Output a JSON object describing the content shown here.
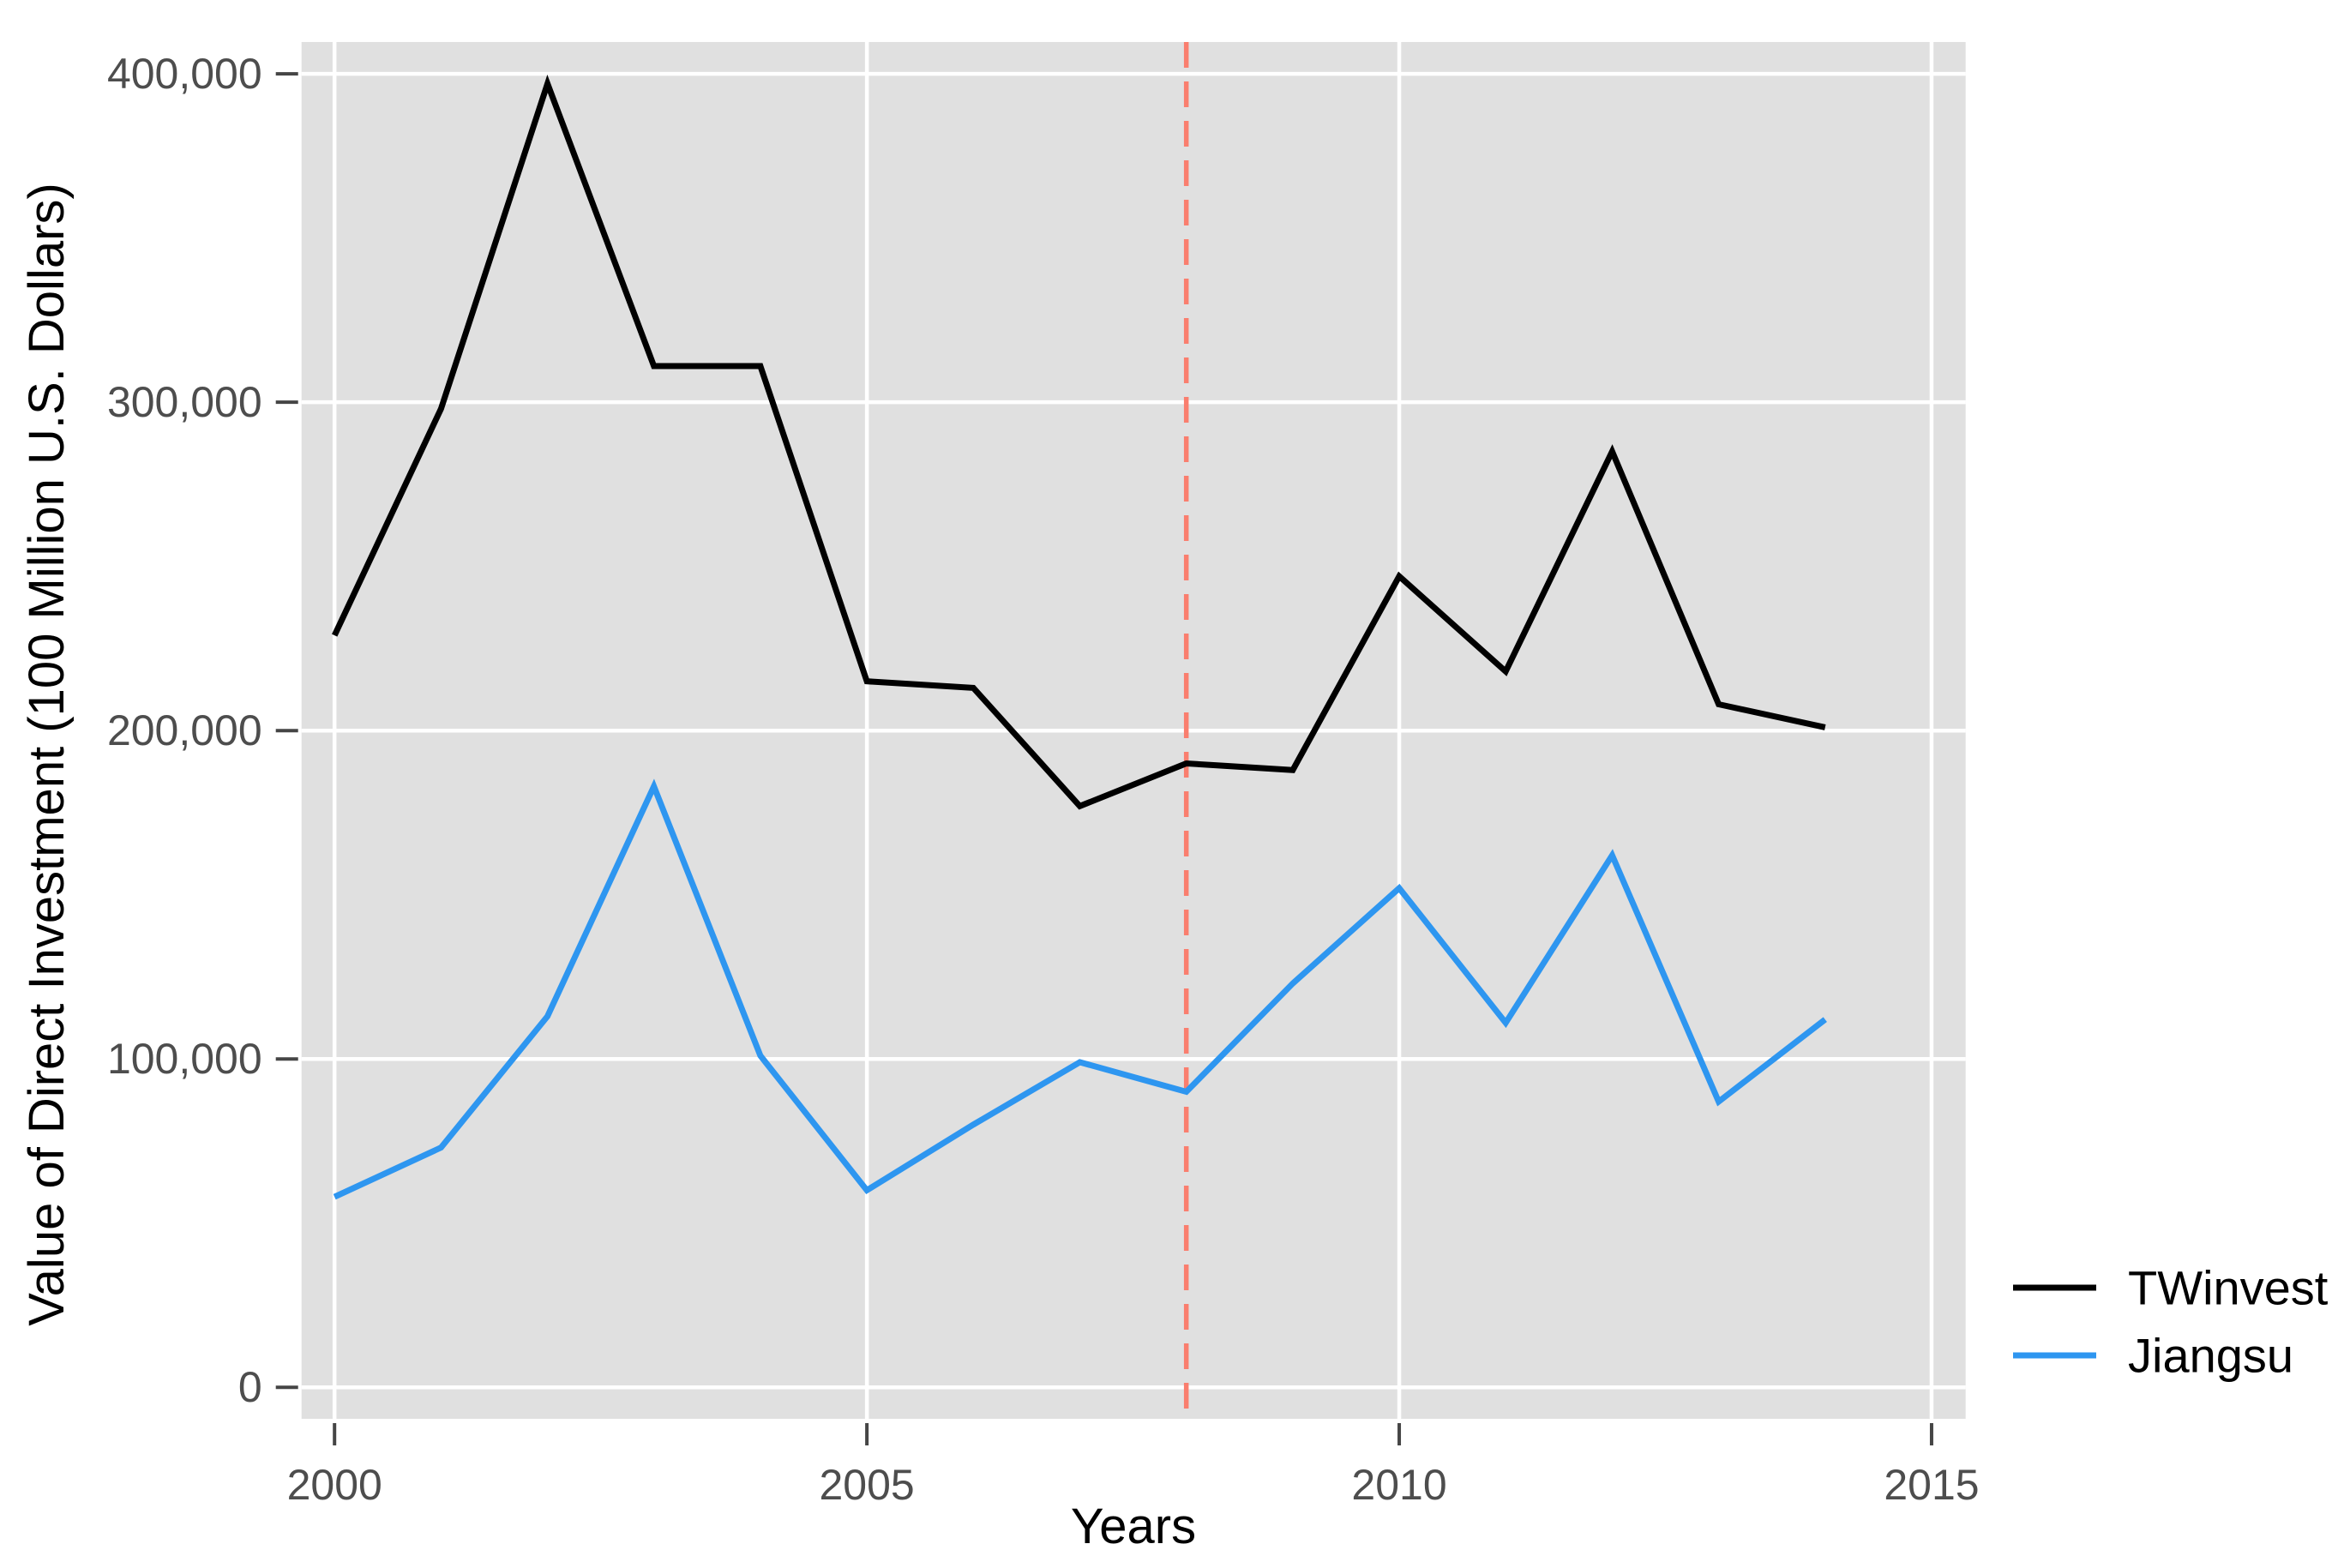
{
  "figure": {
    "background": "#FFFFFF",
    "panel_background": "#E0E0E0",
    "grid_color": "#FFFFFF",
    "tick_color": "#454545",
    "tick_label_color": "#4D4D4D",
    "text_color": "#000000"
  },
  "chart_data": {
    "type": "line",
    "title": "",
    "xlabel": "Years",
    "ylabel": "Value of Direct Investment (100 Million U.S. Dollars)",
    "x": [
      2000,
      2001,
      2002,
      2003,
      2004,
      2005,
      2006,
      2007,
      2008,
      2009,
      2010,
      2011,
      2012,
      2013,
      2014
    ],
    "series": [
      {
        "name": "TWinvest",
        "color": "#000000",
        "values": [
          229000,
          298000,
          397000,
          311000,
          311000,
          215000,
          213000,
          177000,
          190000,
          188000,
          247000,
          218000,
          285000,
          208000,
          201000
        ]
      },
      {
        "name": "Jiangsu",
        "color": "#2E96F0",
        "values": [
          58000,
          73000,
          113000,
          183000,
          101000,
          60000,
          80000,
          99000,
          90000,
          123000,
          152000,
          111000,
          162000,
          87000,
          112000
        ]
      }
    ],
    "reference_line": {
      "orientation": "vertical",
      "x": 2008,
      "color": "#FA7E6E",
      "style": "dashed"
    },
    "x_ticks": [
      {
        "value": 2000,
        "label": "2000"
      },
      {
        "value": 2005,
        "label": "2005"
      },
      {
        "value": 2010,
        "label": "2010"
      },
      {
        "value": 2015,
        "label": "2015"
      }
    ],
    "y_ticks": [
      {
        "value": 0,
        "label": "0"
      },
      {
        "value": 100000,
        "label": "100,000"
      },
      {
        "value": 200000,
        "label": "200,000"
      },
      {
        "value": 300000,
        "label": "300,000"
      },
      {
        "value": 400000,
        "label": "400,000"
      }
    ],
    "x_range": [
      1999.69,
      2015.32
    ],
    "y_range": [
      -9600,
      409700
    ],
    "grid": true,
    "legend_position": "right"
  }
}
